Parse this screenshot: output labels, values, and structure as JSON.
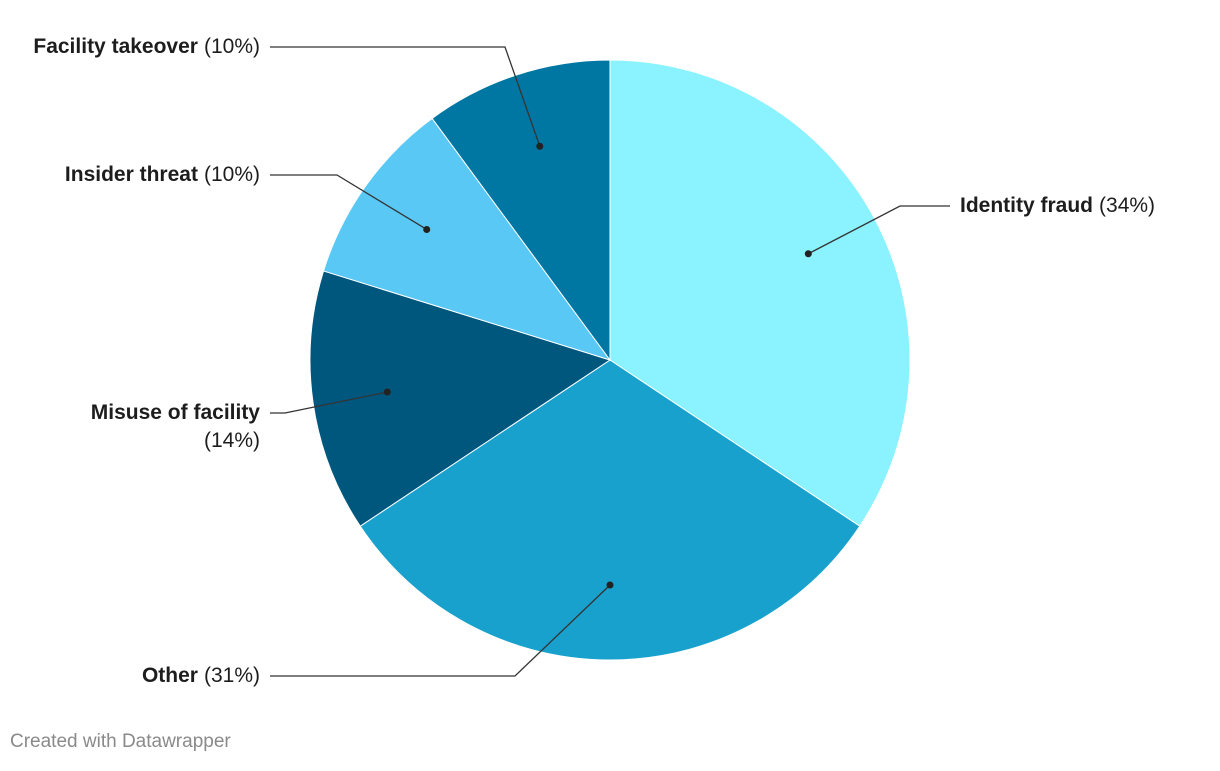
{
  "chart_data": {
    "type": "pie",
    "categories": [
      "Identity fraud",
      "Other",
      "Misuse of facility",
      "Insider threat",
      "Facility takeover"
    ],
    "values": [
      34,
      31,
      14,
      10,
      10
    ],
    "value_labels": [
      "(34%)",
      "(31%)",
      "(14%)",
      "(10%)",
      "(10%)"
    ],
    "colors": [
      "#8af3ff",
      "#18a1cd",
      "#00577d",
      "#5ac8f5",
      "#0077a3"
    ],
    "credit": "Created with Datawrapper"
  }
}
